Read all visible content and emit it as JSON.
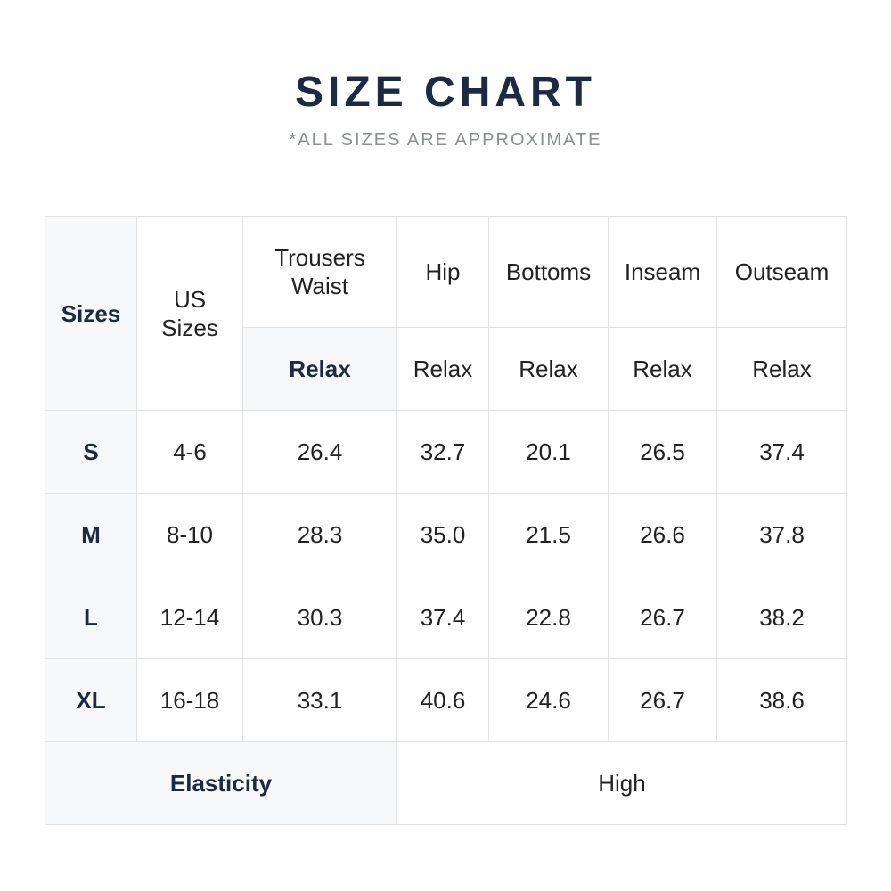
{
  "header": {
    "title": "SIZE CHART",
    "subtitle": "*ALL SIZES ARE APPROXIMATE"
  },
  "table": {
    "columns": [
      "Sizes",
      "US Sizes",
      "Trousers Waist",
      "Hip",
      "Bottoms",
      "Inseam",
      "Outseam"
    ],
    "subheader": [
      "Relax",
      "Relax",
      "Relax",
      "Relax",
      "Relax"
    ],
    "rows": [
      [
        "S",
        "4-6",
        "26.4",
        "32.7",
        "20.1",
        "26.5",
        "37.4"
      ],
      [
        "M",
        "8-10",
        "28.3",
        "35.0",
        "21.5",
        "26.6",
        "37.8"
      ],
      [
        "L",
        "12-14",
        "30.3",
        "37.4",
        "22.8",
        "26.7",
        "38.2"
      ],
      [
        "XL",
        "16-18",
        "33.1",
        "40.6",
        "24.6",
        "26.7",
        "38.6"
      ]
    ],
    "footer": {
      "label": "Elasticity",
      "value": "High"
    }
  }
}
